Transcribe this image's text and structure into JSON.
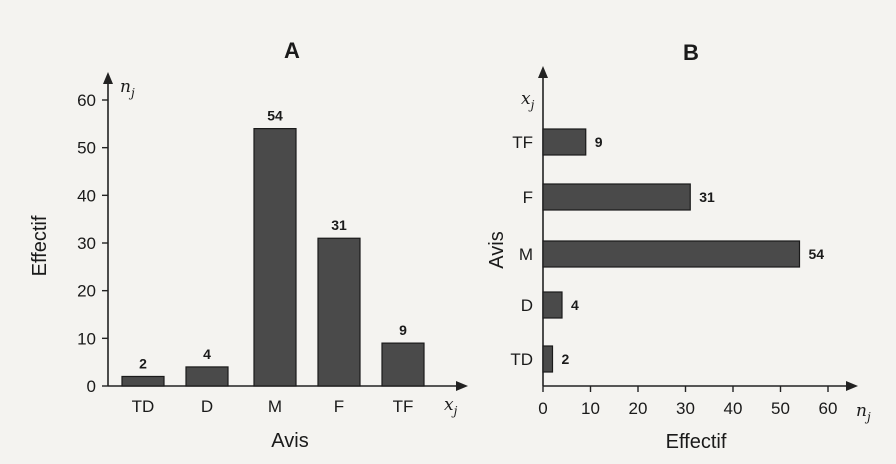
{
  "colors": {
    "bar_fill": "#4a4a4a",
    "bar_stroke": "#1a1a1a",
    "background": "#f4f3f0"
  },
  "chart_data": [
    {
      "id": "A",
      "type": "bar",
      "orientation": "vertical",
      "title": "A",
      "categories": [
        "TD",
        "D",
        "M",
        "F",
        "TF"
      ],
      "values": [
        2,
        4,
        54,
        31,
        9
      ],
      "data_labels": [
        "2",
        "4",
        "54",
        "31",
        "9"
      ],
      "xlabel": "Avis",
      "ylabel": "Effectif",
      "x_axis_var": "x",
      "x_axis_var_sub": "j",
      "y_axis_var": "n",
      "y_axis_var_sub": "j",
      "ylim": [
        0,
        60
      ],
      "yticks": [
        0,
        10,
        20,
        30,
        40,
        50,
        60
      ],
      "ytick_labels": [
        "0",
        "10",
        "20",
        "30",
        "40",
        "50",
        "60"
      ],
      "grid": false,
      "legend": "none"
    },
    {
      "id": "B",
      "type": "bar",
      "orientation": "horizontal",
      "title": "B",
      "categories": [
        "TD",
        "D",
        "M",
        "F",
        "TF"
      ],
      "values": [
        2,
        4,
        54,
        31,
        9
      ],
      "data_labels": [
        "2",
        "4",
        "54",
        "31",
        "9"
      ],
      "xlabel": "Effectif",
      "ylabel": "Avis",
      "x_axis_var": "n",
      "x_axis_var_sub": "j",
      "y_axis_var": "x",
      "y_axis_var_sub": "j",
      "xlim": [
        0,
        60
      ],
      "xticks": [
        0,
        10,
        20,
        30,
        40,
        50,
        60
      ],
      "xtick_labels": [
        "0",
        "10",
        "20",
        "30",
        "40",
        "50",
        "60"
      ],
      "grid": false,
      "legend": "none"
    }
  ]
}
